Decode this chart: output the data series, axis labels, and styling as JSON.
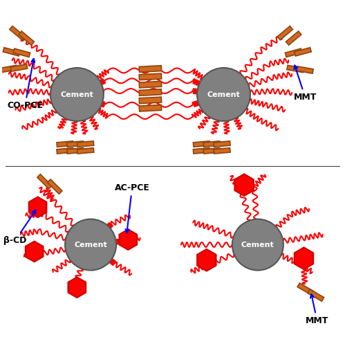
{
  "bg_color": "#ffffff",
  "cement_color": "#808080",
  "cement_edge": "#555555",
  "mmt_color": "#D2691E",
  "mmt_edge": "#8B4513",
  "hex_color": "#FF0000",
  "hex_edge": "#CC0000",
  "line_color": "#FF0000",
  "arrow_color": "#0000FF",
  "text_color": "#000000",
  "cement_label": "Cement",
  "label_copce": "CO-PCE",
  "label_mmt": "MMT",
  "label_acpce": "AC-PCE",
  "label_bcd": "β-CD"
}
